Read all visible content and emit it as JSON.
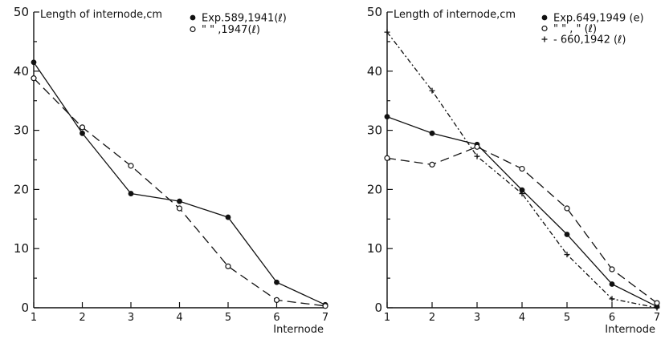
{
  "chart_data": [
    {
      "type": "line",
      "ylabel": "Length of internode,cm",
      "xlabel": "Internode",
      "x": [
        1,
        2,
        3,
        4,
        5,
        6,
        7
      ],
      "xlim": [
        1,
        7
      ],
      "ylim": [
        0,
        50
      ],
      "yticks": [
        0,
        10,
        20,
        30,
        40,
        50
      ],
      "grid": false,
      "legend_position": "top-right",
      "series": [
        {
          "name": "Exp.589,1941(ℓ)",
          "marker": "filled-circle",
          "dash": "solid",
          "values": [
            41.5,
            29.5,
            19.3,
            18.0,
            15.3,
            4.3,
            0.5
          ]
        },
        {
          "name": "\"   \" ,1947(ℓ)",
          "marker": "open-circle",
          "dash": "long-dash",
          "values": [
            38.8,
            30.5,
            24.0,
            16.8,
            7.0,
            1.3,
            0.3
          ]
        }
      ]
    },
    {
      "type": "line",
      "ylabel": "Length of internode,cm",
      "xlabel": "Internode",
      "x": [
        1,
        2,
        3,
        4,
        5,
        6,
        7
      ],
      "xlim": [
        1,
        7
      ],
      "ylim": [
        0,
        50
      ],
      "yticks": [
        0,
        10,
        20,
        30,
        40,
        50
      ],
      "grid": false,
      "legend_position": "top-right",
      "series": [
        {
          "name": "Exp.649,1949 (e)",
          "marker": "filled-circle",
          "dash": "solid",
          "values": [
            32.3,
            29.5,
            27.6,
            19.9,
            12.4,
            4.0,
            0.2
          ]
        },
        {
          "name": "\"    \"   ,  \"   (ℓ)",
          "marker": "open-circle",
          "dash": "long-dash",
          "values": [
            25.3,
            24.2,
            27.2,
            23.5,
            16.8,
            6.5,
            0.8
          ]
        },
        {
          "name": "-   660,1942 (ℓ)",
          "marker": "plus",
          "dash": "dash-dot",
          "values": [
            46.6,
            36.7,
            25.6,
            19.3,
            9.0,
            1.5,
            0.0
          ]
        }
      ]
    }
  ]
}
